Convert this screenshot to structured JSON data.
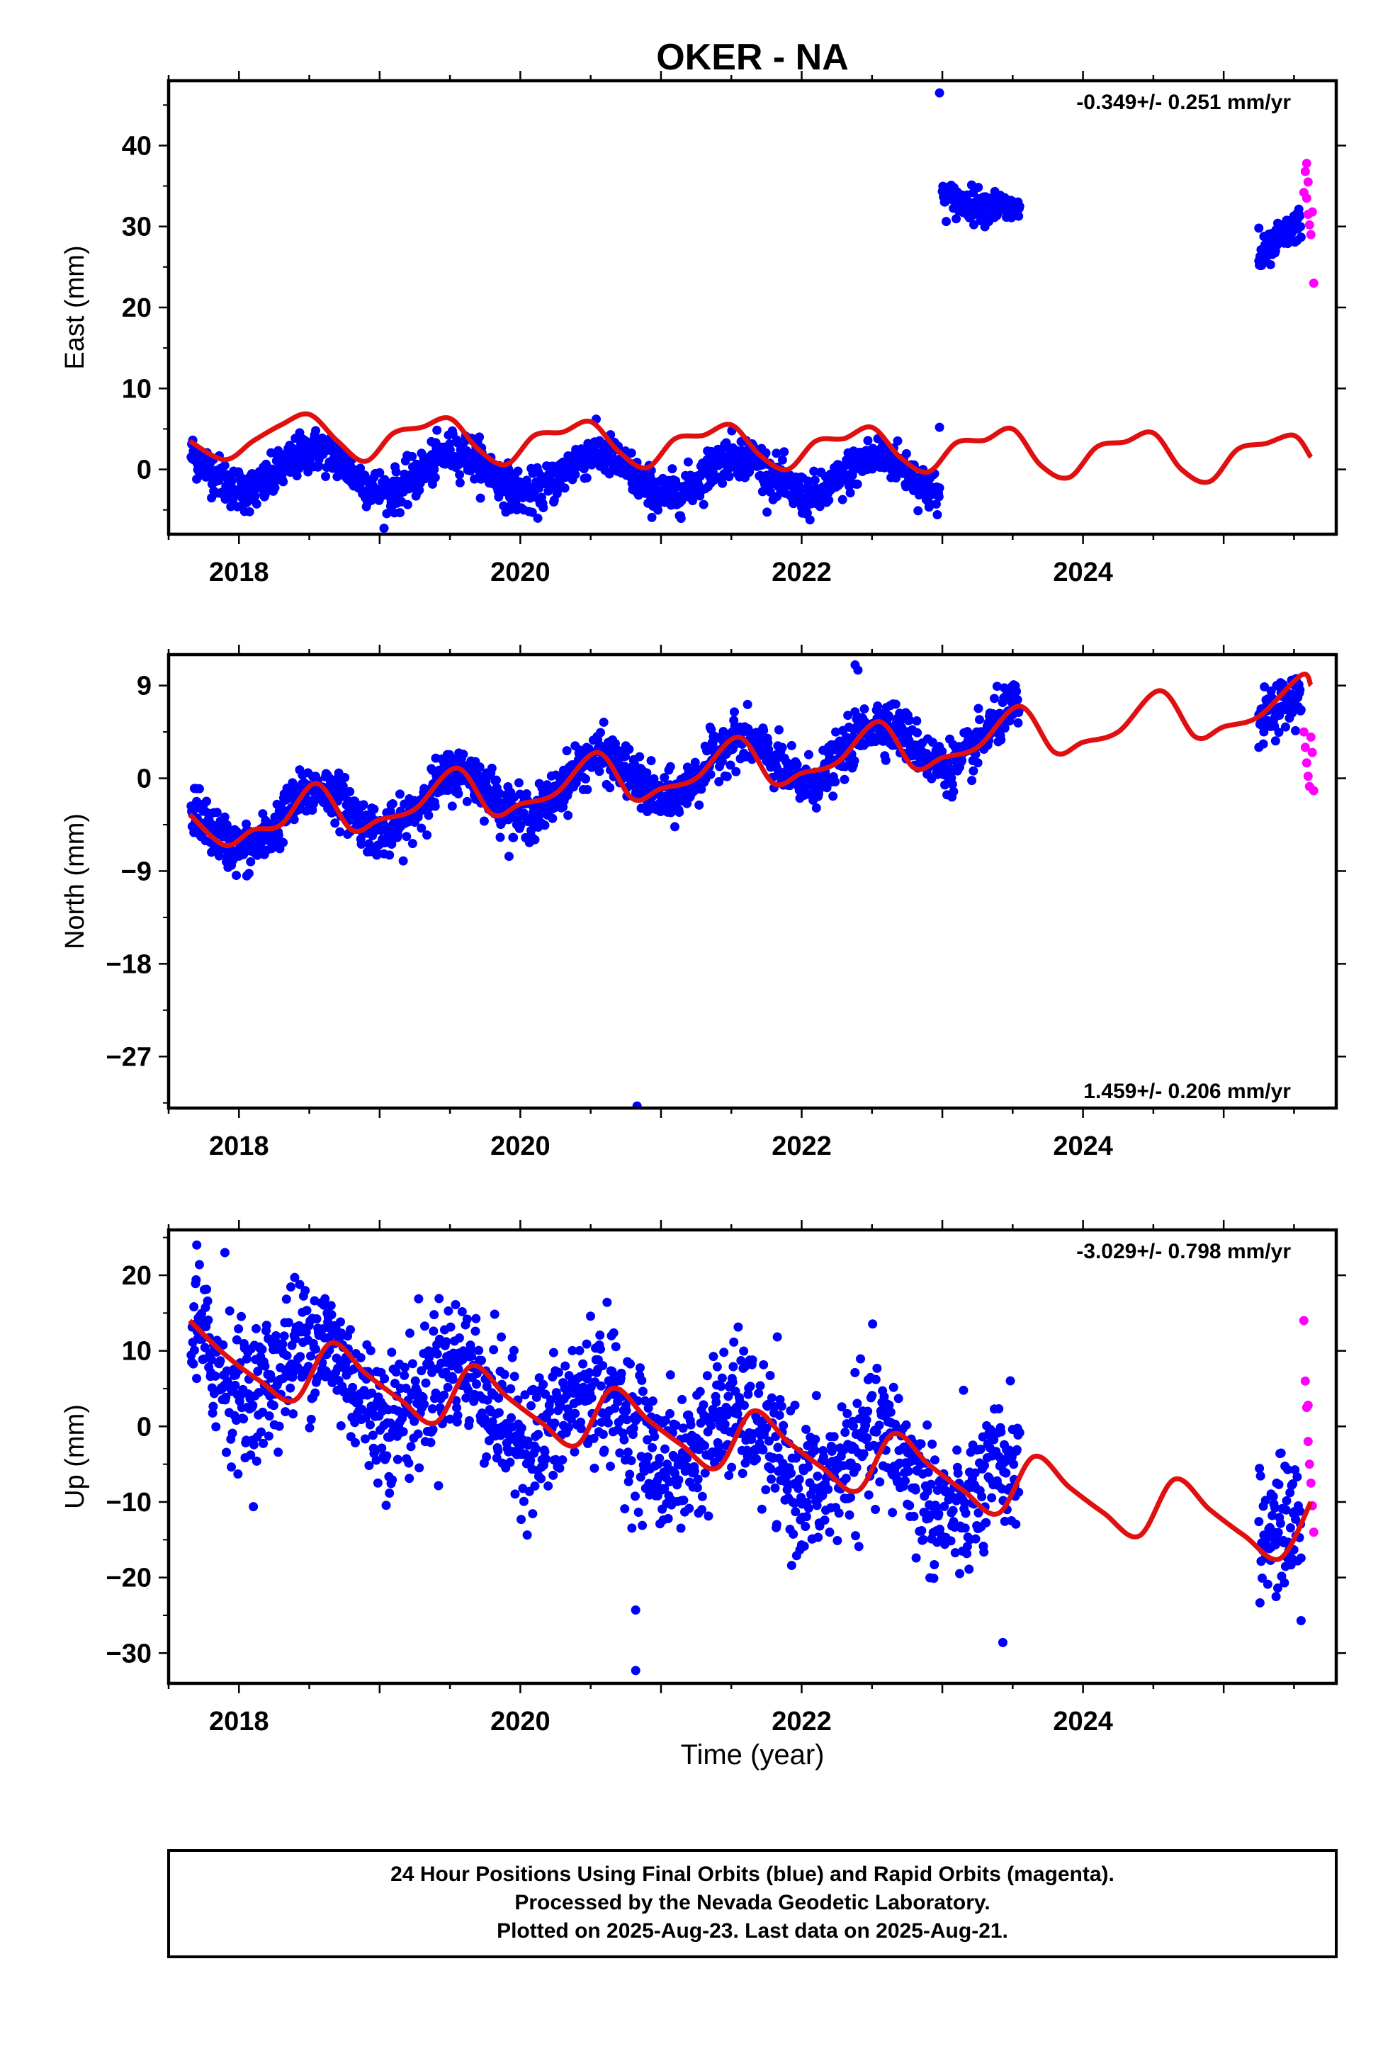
{
  "title": "OKER - NA",
  "xlabel": "Time (year)",
  "footer": [
    "24 Hour Positions Using Final Orbits (blue) and Rapid Orbits (magenta).",
    "Processed by the Nevada Geodetic Laboratory.",
    "Plotted on 2025-Aug-23. Last data on 2025-Aug-21."
  ],
  "colors": {
    "final": "#0000ff",
    "rapid": "#ff00ff",
    "model": "#e01010"
  },
  "chart_data": [
    {
      "type": "scatter",
      "ylabel": "East (mm)",
      "rate_label": "-0.349+/- 0.251 mm/yr",
      "xlim": [
        2017.5,
        2025.8
      ],
      "ylim": [
        -8,
        48
      ],
      "yticks": [
        0,
        10,
        20,
        30,
        40
      ],
      "xticks": [
        2018,
        2020,
        2022,
        2024
      ],
      "final_orbits": {
        "description_points": "daily positions",
        "segments": [
          {
            "x_range": [
              2017.66,
              2022.98
            ],
            "trend_start": 0.0,
            "trend_end": -1.0,
            "annual_amp": 2.5,
            "noise": 1.3
          },
          {
            "x_range": [
              2023.0,
              2023.55
            ],
            "trend_start": 34.5,
            "trend_end": 31.0,
            "annual_amp": 0.8,
            "noise": 1.0
          },
          {
            "x_range": [
              2025.25,
              2025.55
            ],
            "trend_start": 26.0,
            "trend_end": 30.0,
            "annual_amp": 0.5,
            "noise": 1.0
          }
        ],
        "outliers": [
          [
            2022.98,
            46.5
          ],
          [
            2022.98,
            5.2
          ],
          [
            2025.25,
            29.8
          ]
        ]
      },
      "rapid_orbits": {
        "x": [
          2025.57,
          2025.58,
          2025.59,
          2025.6,
          2025.61,
          2025.62,
          2025.63,
          2025.64,
          2025.6,
          2025.59
        ],
        "y": [
          34.2,
          36.8,
          37.8,
          31.5,
          30.2,
          29.0,
          31.8,
          23.0,
          35.5,
          33.5
        ]
      },
      "model": {
        "x": [
          2017.65,
          2017.9,
          2018.1,
          2018.3,
          2018.5,
          2018.7,
          2018.9,
          2019.1,
          2019.3,
          2019.5,
          2019.7,
          2019.9,
          2020.1,
          2020.3,
          2020.5,
          2020.7,
          2020.9,
          2021.1,
          2021.3,
          2021.5,
          2021.7,
          2021.9,
          2022.1,
          2022.3,
          2022.5,
          2022.7,
          2022.9,
          2023.1,
          2023.3,
          2023.5,
          2023.7,
          2023.9,
          2024.1,
          2024.3,
          2024.5,
          2024.7,
          2024.9,
          2025.1,
          2025.3,
          2025.5,
          2025.62
        ],
        "y": [
          3.5,
          1.2,
          3.5,
          5.5,
          6.8,
          3.5,
          1.0,
          4.5,
          5.2,
          6.3,
          2.5,
          0.6,
          4.2,
          4.6,
          5.9,
          2.2,
          0.2,
          3.8,
          4.2,
          5.5,
          1.8,
          0.0,
          3.5,
          3.8,
          5.2,
          1.5,
          -0.3,
          3.3,
          3.6,
          5.0,
          0.5,
          -1.0,
          2.8,
          3.4,
          4.5,
          0.0,
          -1.5,
          2.5,
          3.2,
          4.2,
          1.5
        ]
      }
    },
    {
      "type": "scatter",
      "ylabel": "North (mm)",
      "rate_label": "1.459+/- 0.206 mm/yr",
      "xlim": [
        2017.5,
        2025.8
      ],
      "ylim": [
        -32,
        12
      ],
      "yticks": [
        9,
        0,
        -9,
        -18,
        -27
      ],
      "ytick_labels": [
        "9",
        "0",
        "−9",
        "−18",
        "−27"
      ],
      "xticks": [
        2018,
        2020,
        2022,
        2024
      ],
      "final_orbits": {
        "segments": [
          {
            "x_range": [
              2017.66,
              2023.55
            ],
            "trend_start": -5.0,
            "trend_end": 4.5,
            "annual_amp": 2.5,
            "noise": 1.2
          },
          {
            "x_range": [
              2025.25,
              2025.55
            ],
            "trend_start": 5.5,
            "trend_end": 7.5,
            "annual_amp": 0.5,
            "noise": 1.2
          }
        ],
        "outliers": [
          [
            2020.83,
            -31.8
          ],
          [
            2017.7,
            -1.0
          ],
          [
            2022.38,
            11.0
          ],
          [
            2022.4,
            10.5
          ],
          [
            2025.25,
            3.0
          ]
        ]
      },
      "rapid_orbits": {
        "x": [
          2025.57,
          2025.58,
          2025.59,
          2025.6,
          2025.61,
          2025.62,
          2025.63,
          2025.64
        ],
        "y": [
          4.5,
          3.0,
          1.5,
          0.2,
          -0.8,
          4.0,
          2.5,
          -1.2
        ]
      },
      "model": {
        "x": [
          2017.65,
          2017.9,
          2018.1,
          2018.3,
          2018.55,
          2018.8,
          2019.0,
          2019.25,
          2019.55,
          2019.8,
          2020.0,
          2020.25,
          2020.55,
          2020.8,
          2021.0,
          2021.25,
          2021.55,
          2021.8,
          2022.0,
          2022.25,
          2022.55,
          2022.8,
          2023.0,
          2023.25,
          2023.55,
          2023.8,
          2024.0,
          2024.25,
          2024.55,
          2024.8,
          2025.0,
          2025.25,
          2025.55,
          2025.62
        ],
        "y": [
          -3.5,
          -6.5,
          -5.0,
          -4.5,
          -0.5,
          -5.0,
          -4.0,
          -3.0,
          1.0,
          -3.5,
          -2.5,
          -1.5,
          2.5,
          -2.0,
          -1.0,
          0.0,
          4.0,
          -0.5,
          0.5,
          1.5,
          5.5,
          1.0,
          2.0,
          3.0,
          7.0,
          2.5,
          3.5,
          4.5,
          8.5,
          4.0,
          5.0,
          6.0,
          10.0,
          9.0
        ]
      }
    },
    {
      "type": "scatter",
      "ylabel": "Up (mm)",
      "rate_label": "-3.029+/- 0.798 mm/yr",
      "xlim": [
        2017.5,
        2025.8
      ],
      "ylim": [
        -34,
        26
      ],
      "yticks": [
        20,
        10,
        0,
        -10,
        -20,
        -30
      ],
      "ytick_labels": [
        "20",
        "10",
        "0",
        "−10",
        "−20",
        "−30"
      ],
      "xticks": [
        2018,
        2020,
        2022,
        2024
      ],
      "final_orbits": {
        "segments": [
          {
            "x_range": [
              2017.66,
              2023.55
            ],
            "trend_start": 10.0,
            "trend_end": -9.0,
            "annual_amp": 4.5,
            "noise": 4.5
          },
          {
            "x_range": [
              2025.25,
              2025.55
            ],
            "trend_start": -15.0,
            "trend_end": -12.0,
            "annual_amp": 0.5,
            "noise": 4.0
          }
        ],
        "outliers": [
          [
            2020.82,
            -24.3
          ],
          [
            2020.82,
            -32.3
          ],
          [
            2023.43,
            -28.6
          ],
          [
            2025.55,
            -25.7
          ],
          [
            2017.7,
            24.0
          ],
          [
            2017.9,
            23.0
          ]
        ]
      },
      "rapid_orbits": {
        "x": [
          2025.57,
          2025.58,
          2025.59,
          2025.6,
          2025.61,
          2025.62,
          2025.63,
          2025.64,
          2025.6
        ],
        "y": [
          14.0,
          6.0,
          2.5,
          -2.0,
          -5.0,
          -7.5,
          -10.5,
          -14.0,
          2.8
        ]
      },
      "model": {
        "x": [
          2017.65,
          2017.9,
          2018.15,
          2018.4,
          2018.65,
          2018.9,
          2019.15,
          2019.4,
          2019.65,
          2019.9,
          2020.15,
          2020.4,
          2020.65,
          2020.9,
          2021.15,
          2021.4,
          2021.65,
          2021.9,
          2022.15,
          2022.4,
          2022.65,
          2022.9,
          2023.15,
          2023.4,
          2023.65,
          2023.9,
          2024.15,
          2024.4,
          2024.65,
          2024.9,
          2025.15,
          2025.4,
          2025.62
        ],
        "y": [
          14.0,
          9.5,
          6.0,
          3.5,
          11.0,
          7.0,
          3.5,
          0.5,
          8.0,
          4.0,
          0.5,
          -2.5,
          5.0,
          1.0,
          -2.5,
          -5.5,
          2.0,
          -2.0,
          -5.5,
          -8.5,
          -1.0,
          -5.0,
          -8.5,
          -11.5,
          -4.0,
          -8.0,
          -11.5,
          -14.5,
          -7.0,
          -11.0,
          -14.5,
          -17.5,
          -10.0
        ]
      }
    }
  ]
}
